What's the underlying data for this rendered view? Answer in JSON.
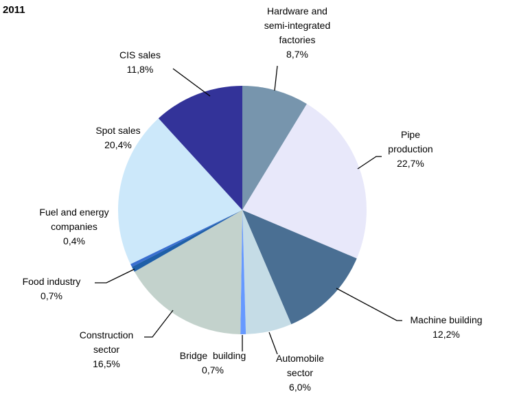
{
  "chart_data": {
    "type": "pie",
    "title": "2011",
    "categories": [
      "Hardware and\nsemi-integrated\nfactories",
      "Pipe\nproduction",
      "Machine building",
      "Automobile\nsector",
      "Bridge  building",
      "Construction\nsector",
      "Food industry",
      "Fuel and energy\ncompanies",
      "Spot sales",
      "CIS sales"
    ],
    "values": [
      8.7,
      22.7,
      12.2,
      6.0,
      0.7,
      16.5,
      0.7,
      0.4,
      20.4,
      11.8
    ],
    "value_labels": [
      "8,7%",
      "22,7%",
      "12,2%",
      "6,0%",
      "0,7%",
      "16,5%",
      "0,7%",
      "0,4%",
      "20,4%",
      "11,8%"
    ],
    "colors": [
      "#7795ad",
      "#e8e8fa",
      "#4a6f93",
      "#c5dce6",
      "#6699ff",
      "#c3d2cc",
      "#1f5fa8",
      "#3a6fd0",
      "#cce8fa",
      "#333399"
    ]
  }
}
